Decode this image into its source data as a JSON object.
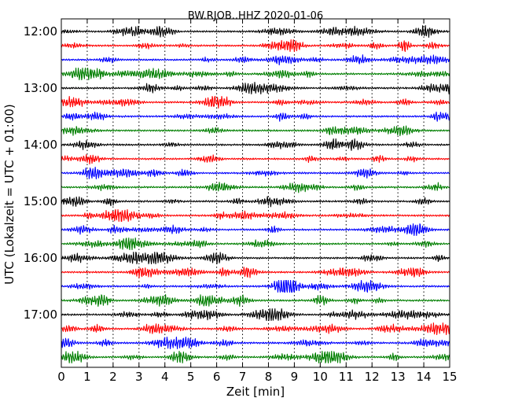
{
  "chart_data": {
    "type": "line",
    "title": "BW.RJOB..HHZ 2020-01-06",
    "xlabel": "Zeit  [min]",
    "ylabel": "UTC (Lokalzeit = UTC + 01:00)",
    "xlim": [
      0,
      15
    ],
    "x_ticks": [
      "0",
      "1",
      "2",
      "3",
      "4",
      "5",
      "6",
      "7",
      "8",
      "9",
      "10",
      "11",
      "12",
      "13",
      "14",
      "15"
    ],
    "y_tick_labels": [
      "12:00",
      "13:00",
      "14:00",
      "15:00",
      "16:00",
      "17:00"
    ],
    "grid": "vertical dotted",
    "series_colors": [
      "#000000",
      "#ff0000",
      "#0000ff",
      "#007f00"
    ],
    "traces": [
      {
        "start": "12:00",
        "color": "#000000"
      },
      {
        "start": "12:15",
        "color": "#ff0000"
      },
      {
        "start": "12:30",
        "color": "#0000ff"
      },
      {
        "start": "12:45",
        "color": "#007f00"
      },
      {
        "start": "13:00",
        "color": "#000000"
      },
      {
        "start": "13:15",
        "color": "#ff0000"
      },
      {
        "start": "13:30",
        "color": "#0000ff"
      },
      {
        "start": "13:45",
        "color": "#007f00"
      },
      {
        "start": "14:00",
        "color": "#000000"
      },
      {
        "start": "14:15",
        "color": "#ff0000"
      },
      {
        "start": "14:30",
        "color": "#0000ff"
      },
      {
        "start": "14:45",
        "color": "#007f00"
      },
      {
        "start": "15:00",
        "color": "#000000"
      },
      {
        "start": "15:15",
        "color": "#ff0000"
      },
      {
        "start": "15:30",
        "color": "#0000ff"
      },
      {
        "start": "15:45",
        "color": "#007f00"
      },
      {
        "start": "16:00",
        "color": "#000000"
      },
      {
        "start": "16:15",
        "color": "#ff0000"
      },
      {
        "start": "16:30",
        "color": "#0000ff"
      },
      {
        "start": "16:45",
        "color": "#007f00"
      },
      {
        "start": "17:00",
        "color": "#000000"
      },
      {
        "start": "17:15",
        "color": "#ff0000"
      },
      {
        "start": "17:30",
        "color": "#0000ff"
      },
      {
        "start": "17:45",
        "color": "#007f00"
      }
    ]
  }
}
